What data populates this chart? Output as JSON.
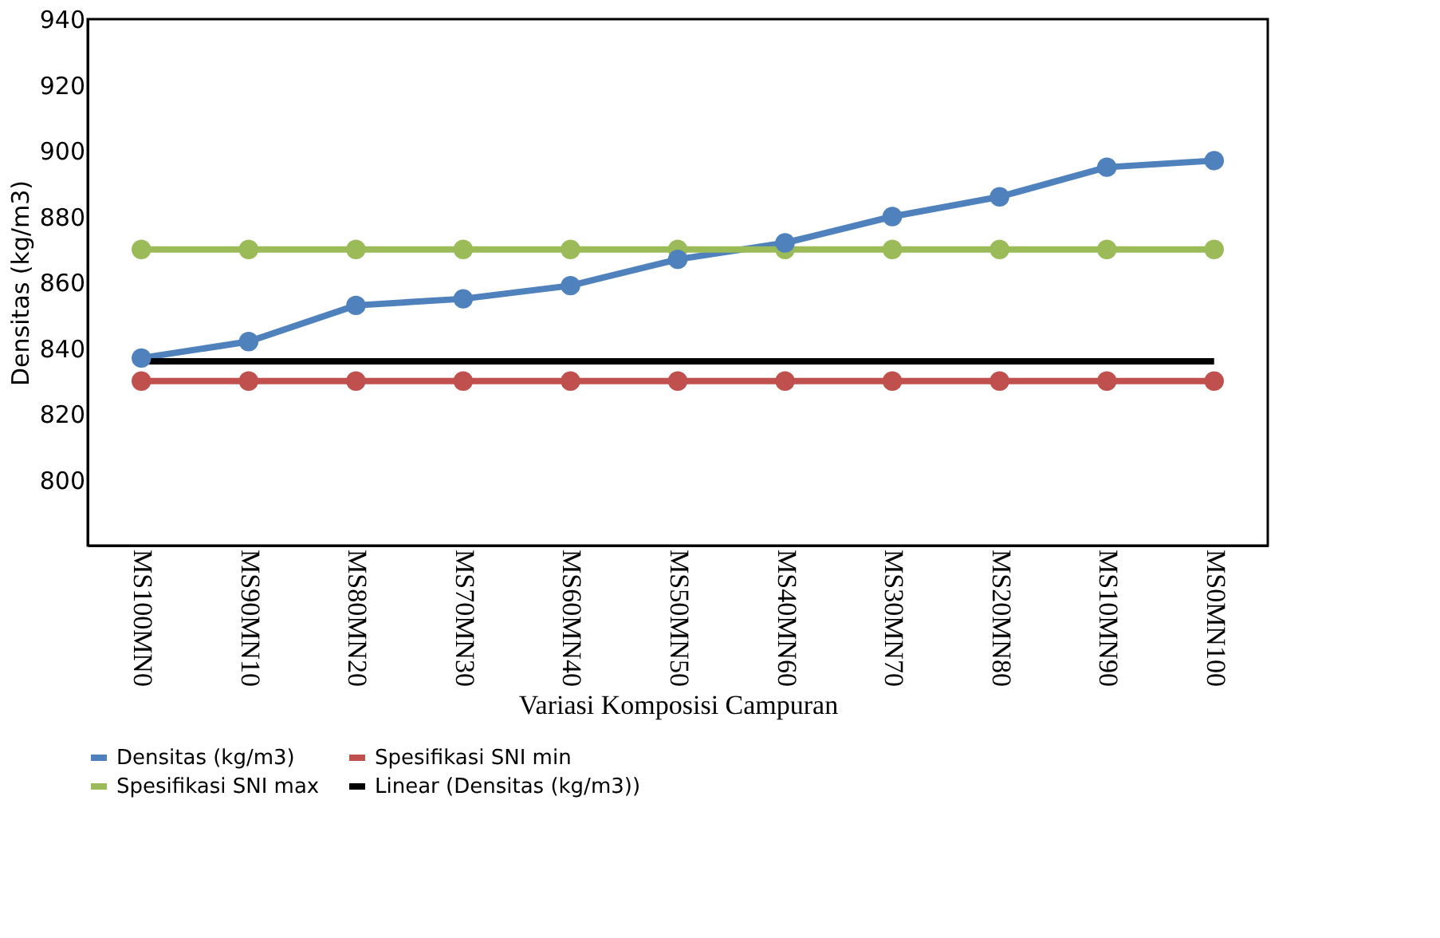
{
  "chart_data": {
    "type": "line",
    "xlabel": "Variasi Komposisi Campuran",
    "ylabel": "Densitas (kg/m3)",
    "categories": [
      "MS100MN0",
      "MS90MN10",
      "MS80MN20",
      "MS70MN30",
      "MS60MN40",
      "MS50MN50",
      "MS40MN60",
      "MS30MN70",
      "MS20MN80",
      "MS10MN90",
      "MS0MN100"
    ],
    "series": [
      {
        "name": "Densitas (kg/m3)",
        "color": "#4f81bd",
        "marker": "circle",
        "values": [
          837,
          842,
          853,
          855,
          859,
          867,
          872,
          880,
          886,
          895,
          897
        ]
      },
      {
        "name": "Spesifikasi SNI min",
        "color": "#c0504d",
        "marker": "circle",
        "values": [
          830,
          830,
          830,
          830,
          830,
          830,
          830,
          830,
          830,
          830,
          830
        ]
      },
      {
        "name": "Spesifikasi SNI max",
        "color": "#9bbb59",
        "marker": "circle",
        "values": [
          870,
          870,
          870,
          870,
          870,
          870,
          870,
          870,
          870,
          870,
          870
        ]
      },
      {
        "name": "Linear (Densitas (kg/m3))",
        "color": "#000000",
        "marker": "none",
        "values": [
          836,
          836,
          836,
          836,
          836,
          836,
          836,
          836,
          836,
          836,
          836
        ]
      }
    ],
    "ylim": [
      780,
      940
    ],
    "yticks": [
      800,
      820,
      840,
      860,
      880,
      900,
      920,
      940
    ],
    "grid": false,
    "legend": "bottom",
    "line_style": "solid"
  }
}
